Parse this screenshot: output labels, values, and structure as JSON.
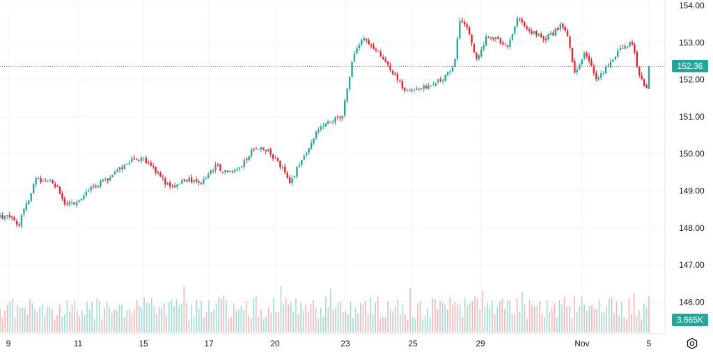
{
  "chart_data": {
    "type": "candlestick",
    "y_ticks": [
      "154.00",
      "153.00",
      "152.00",
      "151.00",
      "150.00",
      "149.00",
      "148.00",
      "147.00",
      "146.00"
    ],
    "x_ticks": [
      {
        "label": "9",
        "day": 0
      },
      {
        "label": "11",
        "day": 2
      },
      {
        "label": "15",
        "day": 4
      },
      {
        "label": "17",
        "day": 6
      },
      {
        "label": "20",
        "day": 8
      },
      {
        "label": "23",
        "day": 10
      },
      {
        "label": "25",
        "day": 12
      },
      {
        "label": "29",
        "day": 14
      },
      {
        "label": "Nov",
        "day": 17
      },
      {
        "label": "5",
        "day": 19
      }
    ],
    "price_ylim": [
      148.0,
      154.0
    ],
    "last_price": "152.36",
    "last_volume": "3.665K",
    "colors": {
      "up": "#26a69a",
      "down": "#e8202a",
      "up_volume": "#9fdcd3",
      "down_volume": "#f6b4b4",
      "grid": "#f0f3fa"
    },
    "keypoints": [
      [
        0.0,
        148.3
      ],
      [
        0.3,
        148.1
      ],
      [
        0.8,
        149.3
      ],
      [
        1.1,
        149.3
      ],
      [
        1.4,
        149.1
      ],
      [
        1.6,
        148.6
      ],
      [
        1.9,
        148.7
      ],
      [
        2.3,
        149.0
      ],
      [
        3.0,
        149.4
      ],
      [
        3.7,
        149.9
      ],
      [
        4.1,
        149.8
      ],
      [
        4.4,
        149.5
      ],
      [
        4.8,
        149.1
      ],
      [
        5.4,
        149.3
      ],
      [
        5.8,
        149.2
      ],
      [
        6.2,
        149.7
      ],
      [
        6.5,
        149.5
      ],
      [
        7.0,
        149.7
      ],
      [
        7.4,
        150.2
      ],
      [
        7.8,
        150.1
      ],
      [
        8.2,
        149.6
      ],
      [
        8.4,
        149.2
      ],
      [
        8.8,
        149.9
      ],
      [
        9.3,
        150.8
      ],
      [
        9.9,
        151.0
      ],
      [
        10.2,
        152.5
      ],
      [
        10.5,
        153.1
      ],
      [
        10.9,
        152.8
      ],
      [
        11.3,
        152.3
      ],
      [
        11.8,
        151.7
      ],
      [
        12.4,
        151.8
      ],
      [
        12.7,
        151.9
      ],
      [
        13.2,
        152.3
      ],
      [
        13.4,
        153.7
      ],
      [
        13.6,
        153.4
      ],
      [
        13.9,
        152.5
      ],
      [
        14.2,
        153.2
      ],
      [
        14.5,
        153.1
      ],
      [
        14.8,
        152.9
      ],
      [
        15.1,
        153.7
      ],
      [
        15.5,
        153.3
      ],
      [
        15.9,
        153.1
      ],
      [
        16.2,
        153.3
      ],
      [
        16.4,
        153.5
      ],
      [
        16.6,
        153.1
      ],
      [
        16.8,
        152.1
      ],
      [
        17.1,
        152.8
      ],
      [
        17.4,
        152.0
      ],
      [
        17.8,
        152.4
      ],
      [
        18.2,
        152.9
      ],
      [
        18.5,
        153.0
      ],
      [
        18.7,
        152.2
      ],
      [
        18.9,
        151.8
      ],
      [
        19.1,
        152.0
      ],
      [
        19.4,
        152.0
      ],
      [
        19.55,
        152.36
      ]
    ],
    "n_candles": 272,
    "n_volume_bars": 262,
    "volume_scale": 4.0
  }
}
